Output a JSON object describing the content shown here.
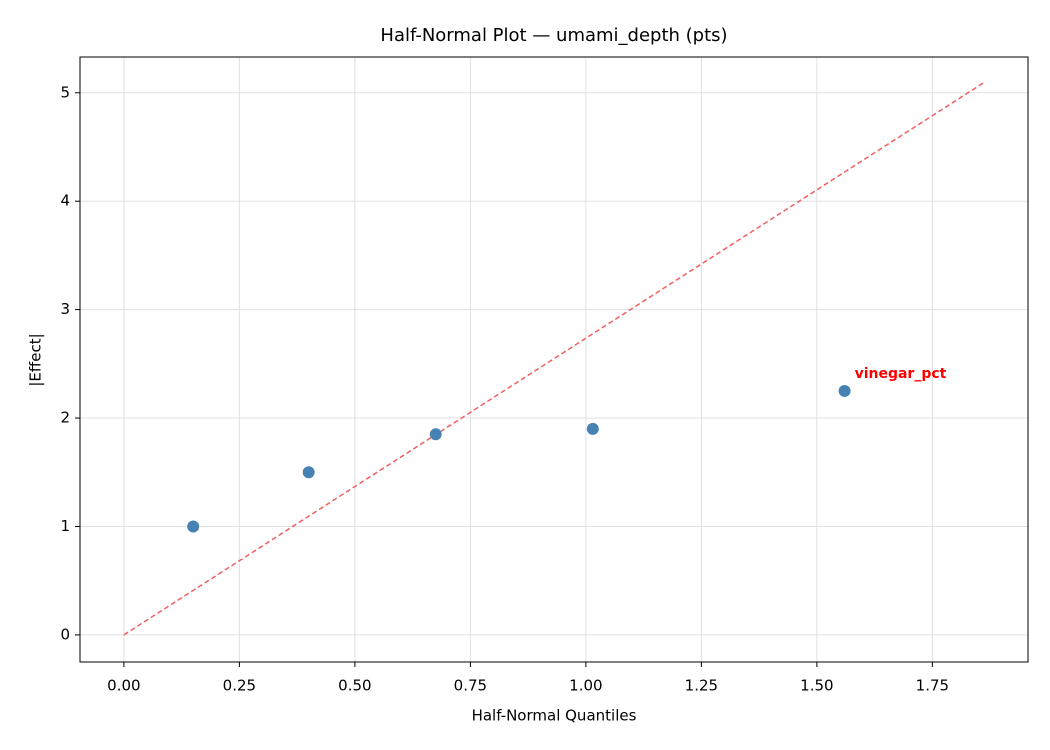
{
  "chart_data": {
    "type": "scatter",
    "title": "Half-Normal Plot — umami_depth (pts)",
    "x_label": "Half-Normal Quantiles",
    "y_label": "|Effect|",
    "x": [
      0.15,
      0.4,
      0.675,
      1.015,
      1.56
    ],
    "y": [
      1.0,
      1.5,
      1.85,
      1.9,
      2.25
    ],
    "color": "#4682b4",
    "point_labels": [
      null,
      null,
      null,
      null,
      "vinegar_pct"
    ],
    "point_label_color": "#ff0000",
    "reference_line": {
      "x": [
        0,
        1.86
      ],
      "y": [
        0,
        5.09
      ],
      "color": "#f06060",
      "dashed": true
    },
    "xlim": [
      -0.095,
      1.957
    ],
    "ylim": [
      -0.25,
      5.33
    ],
    "xticks": [
      {
        "value": 0,
        "label": "0.00"
      },
      {
        "value": 0.25,
        "label": "0.25"
      },
      {
        "value": 0.5,
        "label": "0.50"
      },
      {
        "value": 0.75,
        "label": "0.75"
      },
      {
        "value": 1,
        "label": "1.00"
      },
      {
        "value": 1.25,
        "label": "1.25"
      },
      {
        "value": 1.5,
        "label": "1.50"
      },
      {
        "value": 1.75,
        "label": "1.75"
      }
    ],
    "yticks": [
      0,
      1,
      2,
      3,
      4,
      5
    ],
    "grid": true
  }
}
